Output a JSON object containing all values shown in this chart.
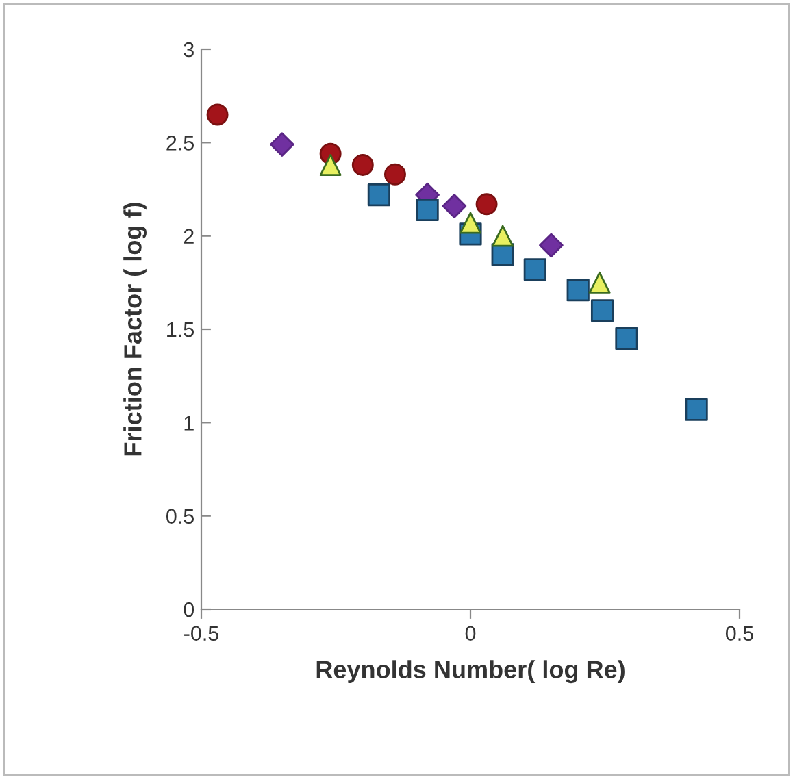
{
  "chart_data": {
    "type": "scatter",
    "xlabel": "Reynolds Number( log Re)",
    "ylabel": "Friction Factor ( log f)",
    "xlim": [
      -0.5,
      0.5
    ],
    "xticks": [
      {
        "value": -0.5,
        "label": "-0.5"
      },
      0,
      0.5
    ],
    "ylim": [
      0,
      3
    ],
    "yticks": [
      0,
      0.5,
      1,
      1.5,
      2,
      2.5,
      3
    ],
    "grid": false,
    "legend": false,
    "series": [
      {
        "color": "#a3141a",
        "marker": "circle",
        "x": [
          -0.47,
          -0.26,
          -0.2,
          -0.14,
          0.03
        ],
        "values": [
          2.65,
          2.44,
          2.38,
          2.33,
          2.17
        ]
      },
      {
        "color": "#7030a0",
        "marker": "diamond",
        "x": [
          -0.35,
          -0.08,
          -0.03,
          0.15
        ],
        "values": [
          2.49,
          2.22,
          2.16,
          1.95
        ]
      },
      {
        "color": "#e8f060",
        "marker": "triangle",
        "x": [
          -0.26,
          0.0,
          0.06,
          0.24
        ],
        "values": [
          2.38,
          2.07,
          2.0,
          1.75
        ]
      },
      {
        "color": "#2a7ab0",
        "marker": "square",
        "x": [
          -0.17,
          -0.08,
          0.0,
          0.06,
          0.12,
          0.2,
          0.245,
          0.29,
          0.42
        ],
        "values": [
          2.22,
          2.14,
          2.01,
          1.9,
          1.82,
          1.71,
          1.6,
          1.45,
          1.07
        ]
      }
    ]
  }
}
